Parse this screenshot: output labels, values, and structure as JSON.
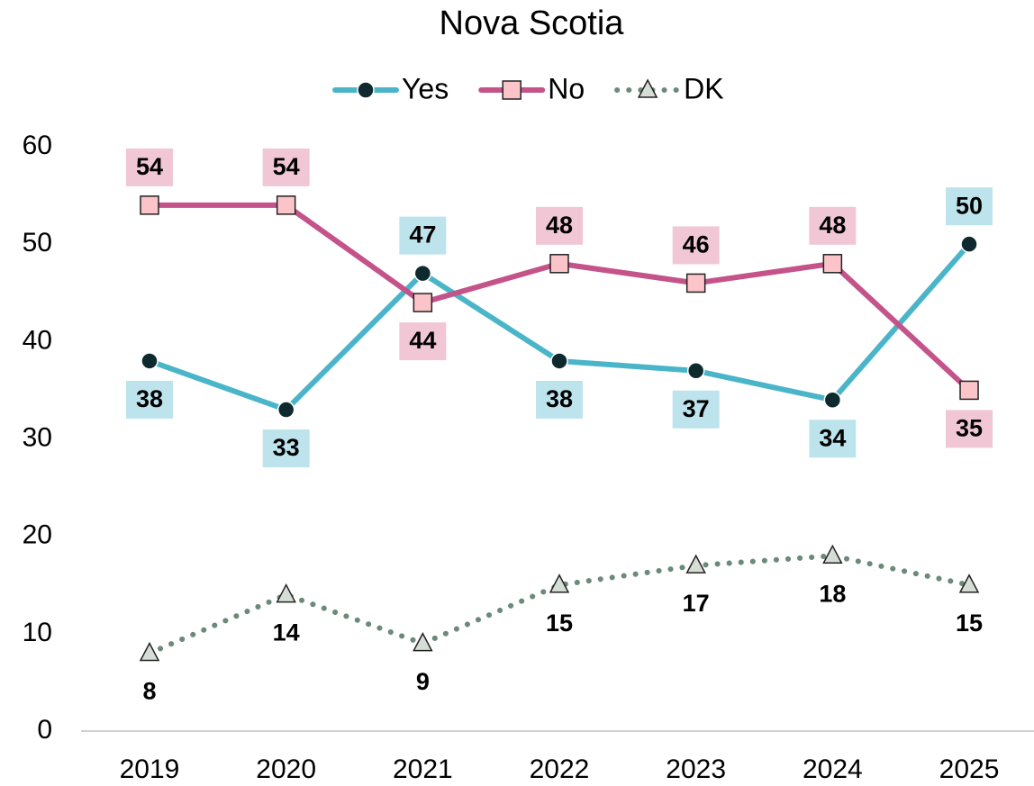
{
  "chart_data": {
    "type": "line",
    "title": "Nova Scotia",
    "categories": [
      "2019",
      "2020",
      "2021",
      "2022",
      "2023",
      "2024",
      "2025"
    ],
    "series": [
      {
        "name": "Yes",
        "color": "#4ab5c9",
        "values": [
          38,
          33,
          47,
          38,
          37,
          34,
          50
        ]
      },
      {
        "name": "No",
        "color": "#c4538a",
        "values": [
          54,
          54,
          44,
          48,
          46,
          48,
          35
        ]
      },
      {
        "name": "DK",
        "color": "#6b8a7a",
        "values": [
          8,
          14,
          9,
          15,
          17,
          18,
          15
        ]
      }
    ],
    "ylim": [
      0,
      60
    ],
    "yticks": [
      0,
      10,
      20,
      30,
      40,
      50,
      60
    ],
    "grid": false,
    "legend": "top"
  }
}
